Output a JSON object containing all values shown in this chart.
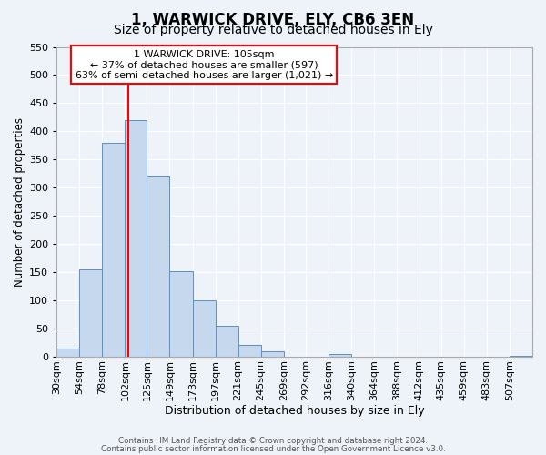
{
  "title": "1, WARWICK DRIVE, ELY, CB6 3EN",
  "subtitle": "Size of property relative to detached houses in Ely",
  "xlabel": "Distribution of detached houses by size in Ely",
  "ylabel": "Number of detached properties",
  "bin_labels": [
    "30sqm",
    "54sqm",
    "78sqm",
    "102sqm",
    "125sqm",
    "149sqm",
    "173sqm",
    "197sqm",
    "221sqm",
    "245sqm",
    "269sqm",
    "292sqm",
    "316sqm",
    "340sqm",
    "364sqm",
    "388sqm",
    "412sqm",
    "435sqm",
    "459sqm",
    "483sqm",
    "507sqm"
  ],
  "bin_edges": [
    30,
    54,
    78,
    102,
    125,
    149,
    173,
    197,
    221,
    245,
    269,
    292,
    316,
    340,
    364,
    388,
    412,
    435,
    459,
    483,
    507,
    531
  ],
  "counts": [
    15,
    155,
    380,
    420,
    322,
    152,
    100,
    55,
    22,
    10,
    0,
    0,
    5,
    0,
    0,
    0,
    0,
    0,
    0,
    0,
    3
  ],
  "bar_color": "#c5d8ee",
  "bar_edge_color": "#5b8fc9",
  "vline_x": 105,
  "vline_color": "red",
  "annotation_text": "1 WARWICK DRIVE: 105sqm\n← 37% of detached houses are smaller (597)\n63% of semi-detached houses are larger (1,021) →",
  "annotation_box_color": "red",
  "ylim": [
    0,
    550
  ],
  "yticks": [
    0,
    50,
    100,
    150,
    200,
    250,
    300,
    350,
    400,
    450,
    500,
    550
  ],
  "background_color": "#eef2f9",
  "grid_color": "white",
  "footer_line1": "Contains HM Land Registry data © Crown copyright and database right 2024.",
  "footer_line2": "Contains public sector information licensed under the Open Government Licence v3.0.",
  "title_fontsize": 12,
  "subtitle_fontsize": 10,
  "xlabel_fontsize": 9,
  "ylabel_fontsize": 8.5,
  "tick_fontsize": 8
}
